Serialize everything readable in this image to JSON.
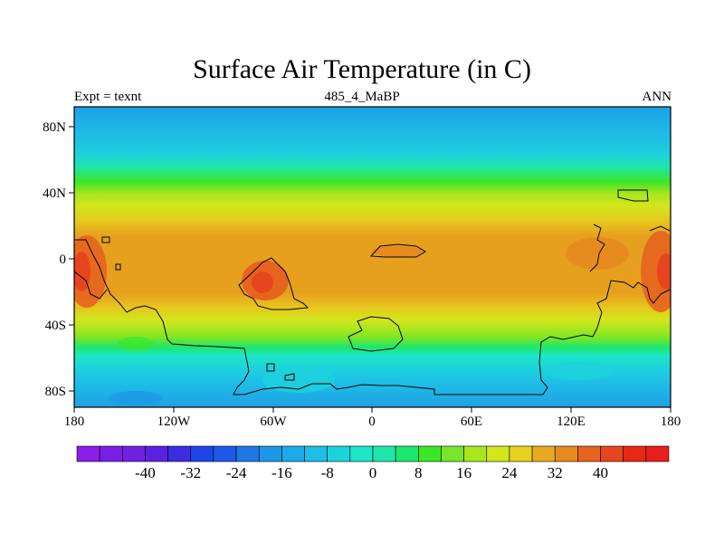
{
  "title": "Surface Air Temperature (in C)",
  "subtitle_left": "Expt = texnt",
  "subtitle_center": "485_4_MaBP",
  "subtitle_right": "ANN",
  "map": {
    "type": "filled-contour-map",
    "lon_range": [
      -180,
      180
    ],
    "lat_range": [
      -90,
      90
    ],
    "lon_ticks": [
      "180",
      "120W",
      "60W",
      "0",
      "60E",
      "120E",
      "180"
    ],
    "lat_ticks": [
      "80N",
      "40N",
      "0",
      "40S",
      "80S"
    ]
  },
  "colorbar": {
    "levels": [
      -48,
      -44,
      -40,
      -36,
      -32,
      -28,
      -24,
      -20,
      -16,
      -12,
      -8,
      -4,
      0,
      4,
      8,
      12,
      16,
      20,
      24,
      28,
      32,
      36,
      40,
      44,
      48
    ],
    "labels": [
      "-40",
      "-32",
      "-24",
      "-16",
      "-8",
      "0",
      "8",
      "16",
      "24",
      "32",
      "40"
    ],
    "colors": [
      "#8a1ee6",
      "#7a1ee6",
      "#6e22e0",
      "#5a22e0",
      "#3c2ce0",
      "#1e46e6",
      "#1e5ae6",
      "#1e78e6",
      "#1e96e6",
      "#1eaae6",
      "#1ebee6",
      "#1ed2dc",
      "#1ee6c8",
      "#1ee6aa",
      "#1ee66e",
      "#3ce628",
      "#78e628",
      "#aae61e",
      "#d2e61e",
      "#e6d21e",
      "#e6aa1e",
      "#e68c1e",
      "#e6641e",
      "#e6461e",
      "#e62814",
      "#e61e1e"
    ]
  }
}
